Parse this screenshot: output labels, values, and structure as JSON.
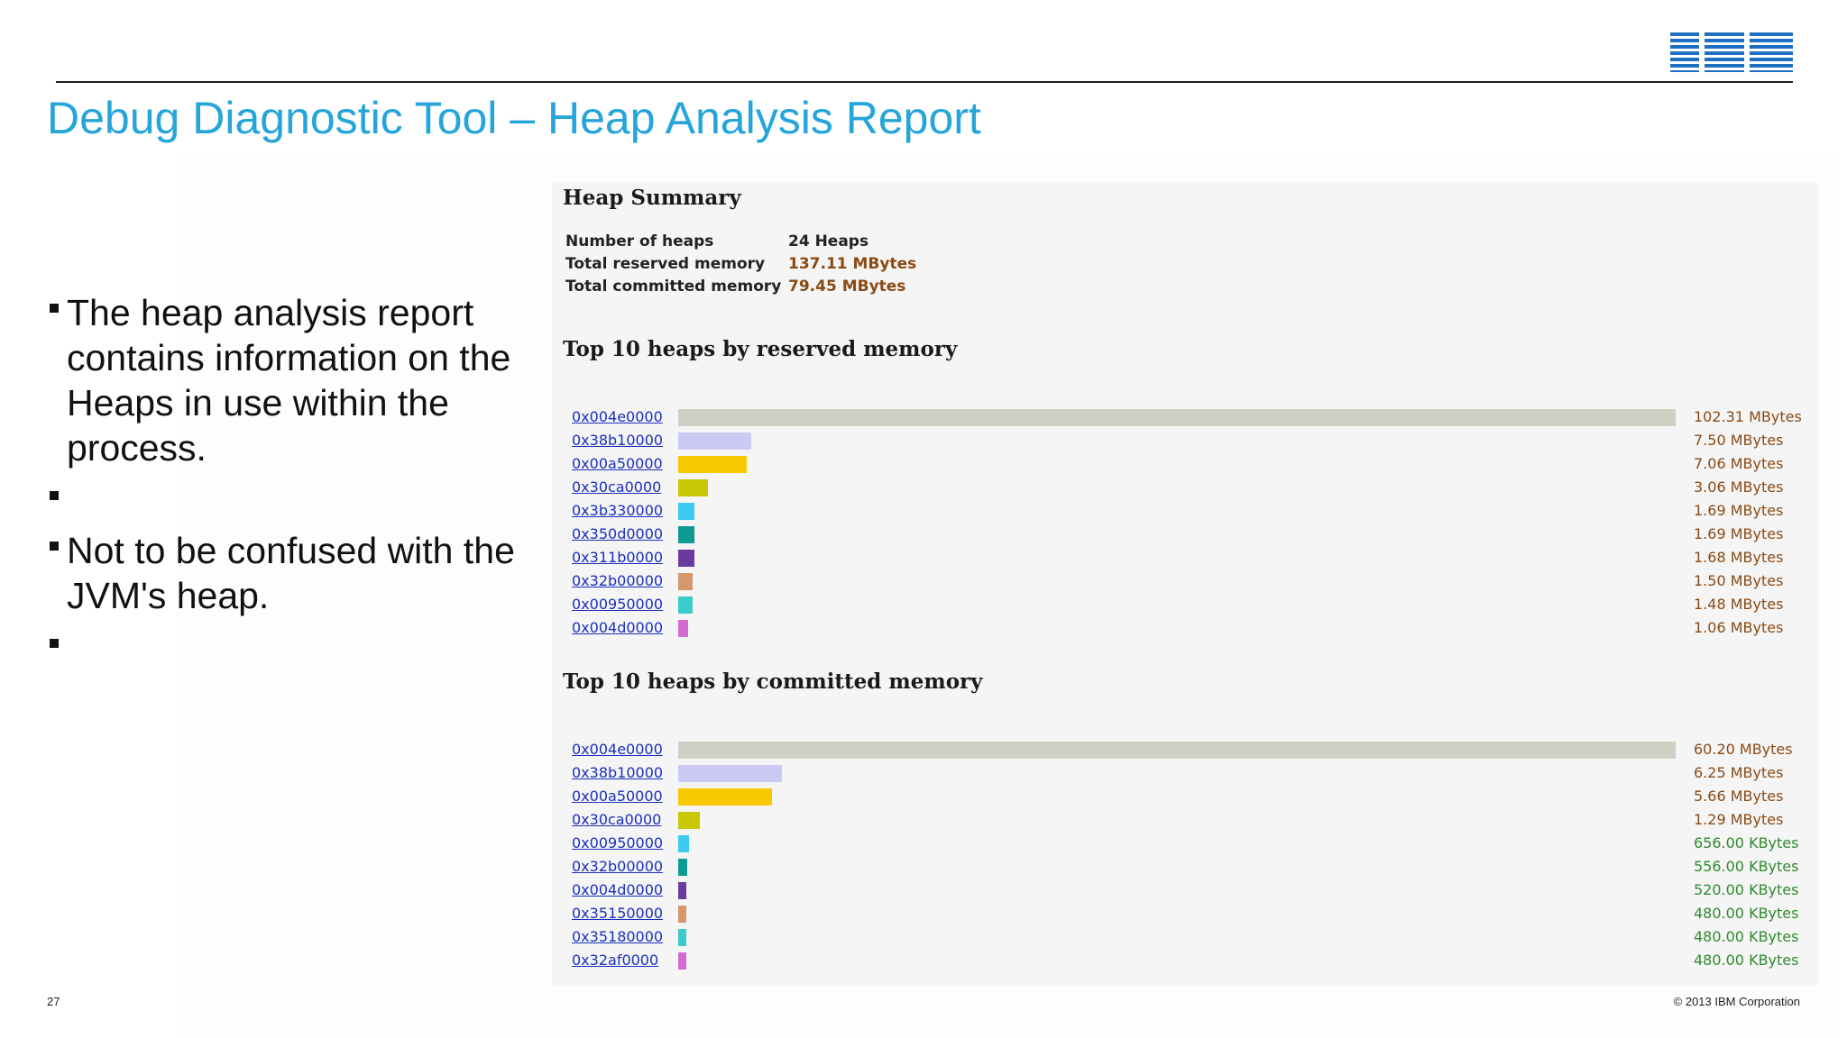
{
  "slide": {
    "title": "Debug Diagnostic Tool – Heap Analysis Report",
    "logo": "IBM",
    "page_number": "27",
    "copyright": "© 2013 IBM Corporation",
    "colors": {
      "title": "#25a5d9",
      "logo": "#1f70c1",
      "size_mb": "#8a4a14",
      "size_kb": "#2f8a2f",
      "link": "#1a2fbf"
    }
  },
  "bullets": [
    {
      "text": "The heap analysis report contains information on the Heaps in use within the process."
    },
    {
      "text": ""
    },
    {
      "text": "Not to be confused with the JVM's heap."
    },
    {
      "text": ""
    }
  ],
  "report": {
    "summary": {
      "heading": "Heap Summary",
      "rows": [
        {
          "label": "Number of heaps",
          "value": "24 Heaps"
        },
        {
          "label": "Total reserved memory",
          "value": "137.11 MBytes"
        },
        {
          "label": "Total committed memory",
          "value": "79.45 MBytes"
        }
      ]
    },
    "reserved": {
      "heading": "Top 10 heaps by reserved memory",
      "rows": [
        {
          "address": "0x004e0000",
          "size": "102.31 MBytes",
          "kbytes": 104765,
          "color": "#cfcfc3"
        },
        {
          "address": "0x38b10000",
          "size": "7.50 MBytes",
          "kbytes": 7680,
          "color": "#cbcaf5"
        },
        {
          "address": "0x00a50000",
          "size": "7.06 MBytes",
          "kbytes": 7229,
          "color": "#f8c800"
        },
        {
          "address": "0x30ca0000",
          "size": "3.06 MBytes",
          "kbytes": 3133,
          "color": "#c8c804"
        },
        {
          "address": "0x3b330000",
          "size": "1.69 MBytes",
          "kbytes": 1731,
          "color": "#3ccbf0"
        },
        {
          "address": "0x350d0000",
          "size": "1.69 MBytes",
          "kbytes": 1731,
          "color": "#0e9a92"
        },
        {
          "address": "0x311b0000",
          "size": "1.68 MBytes",
          "kbytes": 1720,
          "color": "#6a3a9f"
        },
        {
          "address": "0x32b00000",
          "size": "1.50 MBytes",
          "kbytes": 1536,
          "color": "#d5976b"
        },
        {
          "address": "0x00950000",
          "size": "1.48 MBytes",
          "kbytes": 1516,
          "color": "#3bcbcb"
        },
        {
          "address": "0x004d0000",
          "size": "1.06 MBytes",
          "kbytes": 1085,
          "color": "#d369d1"
        }
      ]
    },
    "committed": {
      "heading": "Top 10 heaps by committed memory",
      "rows": [
        {
          "address": "0x004e0000",
          "size": "60.20 MBytes",
          "kbytes": 61645,
          "color": "#cfcfc3"
        },
        {
          "address": "0x38b10000",
          "size": "6.25 MBytes",
          "kbytes": 6400,
          "color": "#cbcaf5"
        },
        {
          "address": "0x00a50000",
          "size": "5.66 MBytes",
          "kbytes": 5796,
          "color": "#f8c800"
        },
        {
          "address": "0x30ca0000",
          "size": "1.29 MBytes",
          "kbytes": 1321,
          "color": "#c8c804"
        },
        {
          "address": "0x00950000",
          "size": "656.00 KBytes",
          "kbytes": 656,
          "color": "#3ccbf0"
        },
        {
          "address": "0x32b00000",
          "size": "556.00 KBytes",
          "kbytes": 556,
          "color": "#0e9a92"
        },
        {
          "address": "0x004d0000",
          "size": "520.00 KBytes",
          "kbytes": 520,
          "color": "#6a3a9f"
        },
        {
          "address": "0x35150000",
          "size": "480.00 KBytes",
          "kbytes": 480,
          "color": "#d5976b"
        },
        {
          "address": "0x35180000",
          "size": "480.00 KBytes",
          "kbytes": 480,
          "color": "#3bcbcb"
        },
        {
          "address": "0x32af0000",
          "size": "480.00 KBytes",
          "kbytes": 480,
          "color": "#d369d1"
        }
      ]
    }
  }
}
